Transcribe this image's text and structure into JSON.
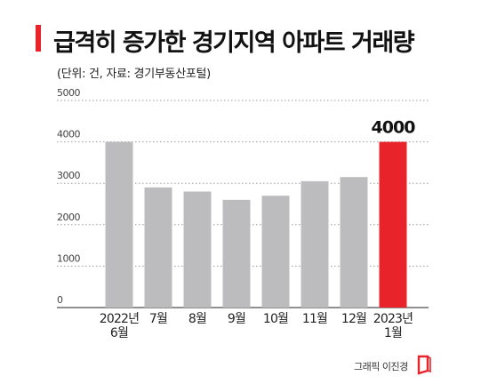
{
  "header": {
    "title": "급격히 증가한 경기지역 아파트 거래량",
    "subtitle": "(단위: 건, 자료: 경기부동산포털)"
  },
  "credit": {
    "text": "그래픽 이진경"
  },
  "colors": {
    "bar": "#bcbcbf",
    "highlight": "#e8232a",
    "accent": "#e8232a"
  },
  "chart_data": {
    "type": "bar",
    "categories": [
      [
        "2022년",
        "6월"
      ],
      [
        "7월"
      ],
      [
        "8월"
      ],
      [
        "9월"
      ],
      [
        "10월"
      ],
      [
        "11월"
      ],
      [
        "12월"
      ],
      [
        "2023년",
        "1월"
      ]
    ],
    "values": [
      4000,
      2900,
      2800,
      2600,
      2700,
      3050,
      3150,
      4000
    ],
    "highlight_index": 7,
    "value_labels": [
      {
        "index": 7,
        "text": "4000"
      }
    ],
    "yticks": [
      0,
      1000,
      2000,
      3000,
      4000,
      5000
    ],
    "ylim": [
      0,
      5000
    ],
    "grid": true,
    "grid_style": "dotted",
    "title": "급격히 증가한 경기지역 아파트 거래량",
    "xlabel": "",
    "ylabel": ""
  }
}
